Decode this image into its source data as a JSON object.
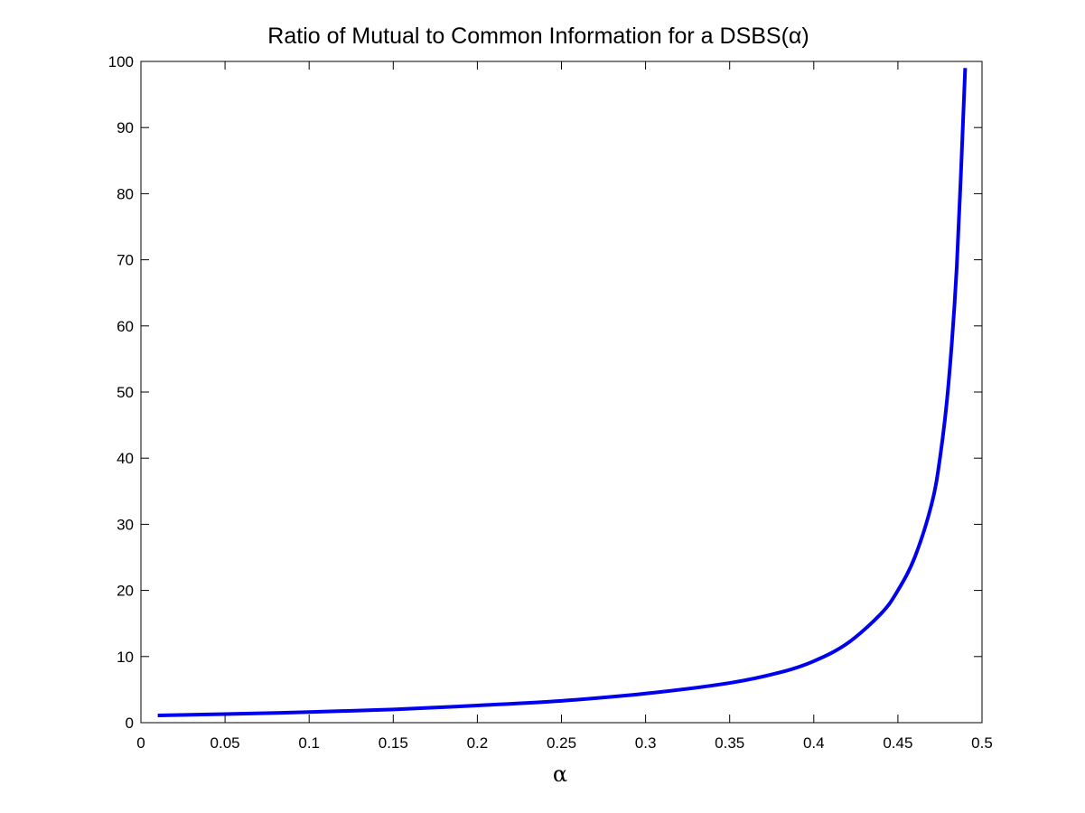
{
  "chart_data": {
    "type": "line",
    "title": "Ratio of Mutual to Common Information for a DSBS(α)",
    "xlabel": "α",
    "ylabel": "",
    "xlim": [
      0,
      0.5
    ],
    "ylim": [
      0,
      100
    ],
    "xticks": [
      0,
      0.05,
      0.1,
      0.15,
      0.2,
      0.25,
      0.3,
      0.35,
      0.4,
      0.45,
      0.5
    ],
    "xtick_labels": [
      "0",
      "0.05",
      "0.1",
      "0.15",
      "0.2",
      "0.25",
      "0.3",
      "0.35",
      "0.4",
      "0.45",
      "0.5"
    ],
    "yticks": [
      0,
      10,
      20,
      30,
      40,
      50,
      60,
      70,
      80,
      90,
      100
    ],
    "ytick_labels": [
      "0",
      "10",
      "20",
      "30",
      "40",
      "50",
      "60",
      "70",
      "80",
      "90",
      "100"
    ],
    "grid": false,
    "series": [
      {
        "color": "#0000ee",
        "x": [
          0.01,
          0.05,
          0.1,
          0.15,
          0.2,
          0.25,
          0.3,
          0.35,
          0.38,
          0.4,
          0.42,
          0.44,
          0.45,
          0.46,
          0.47,
          0.475,
          0.48,
          0.485,
          0.49
        ],
        "y": [
          1.1,
          1.3,
          1.6,
          2.0,
          2.6,
          3.3,
          4.4,
          6.0,
          7.6,
          9.3,
          12.0,
          16.5,
          20.0,
          25.0,
          33.0,
          40.0,
          51.0,
          69.0,
          99.0
        ]
      }
    ]
  }
}
